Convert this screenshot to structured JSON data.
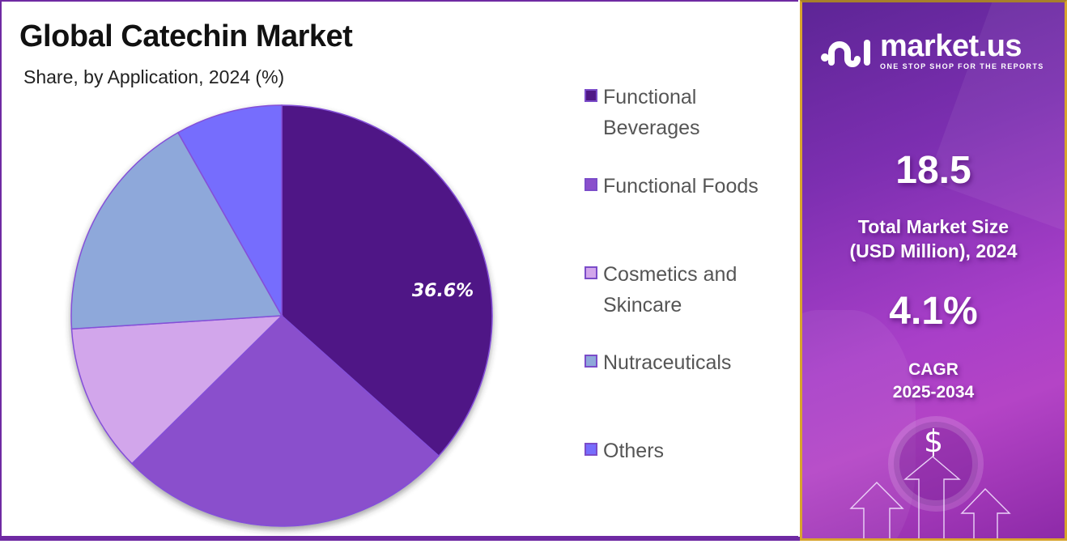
{
  "header": {
    "title": "Global Catechin Market",
    "subtitle": "Share, by Application, 2024 (%)"
  },
  "chart_data": {
    "type": "pie",
    "title": "Global Catechin Market",
    "subtitle": "Share, by Application, 2024 (%)",
    "categories": [
      "Functional Beverages",
      "Functional Foods",
      "Cosmetics and Skincare",
      "Nutraceuticals",
      "Others"
    ],
    "values": [
      36.6,
      26.0,
      11.4,
      17.8,
      8.2
    ],
    "colors": [
      "#4f1786",
      "#8a4fcc",
      "#d2a6eb",
      "#8ea8da",
      "#766dfd"
    ],
    "data_labels": [
      {
        "category": "Functional Beverages",
        "text": "36.6%"
      }
    ],
    "start_angle_deg": 0,
    "direction": "clockwise",
    "legend_position": "right"
  },
  "legend": {
    "items": [
      {
        "label_line1": "Functional",
        "label_line2": "Beverages",
        "color": "#4f1786"
      },
      {
        "label_line1": "Functional Foods",
        "label_line2": "",
        "color": "#8a4fcc"
      },
      {
        "label_line1": "Cosmetics and",
        "label_line2": "Skincare",
        "color": "#d2a6eb"
      },
      {
        "label_line1": "Nutraceuticals",
        "label_line2": "",
        "color": "#8ea8da"
      },
      {
        "label_line1": "Others",
        "label_line2": "",
        "color": "#766dfd"
      }
    ]
  },
  "pie_label": "36.6%",
  "sidebar": {
    "brand": "market.us",
    "tagline": "ONE STOP SHOP FOR THE REPORTS",
    "market_size_value": "18.5",
    "market_size_label_line1": "Total Market Size",
    "market_size_label_line2": "(USD Million), 2024",
    "cagr_value": "4.1%",
    "cagr_label_line1": "CAGR",
    "cagr_label_line2": "2025-2034",
    "dollar_symbol": "$"
  }
}
